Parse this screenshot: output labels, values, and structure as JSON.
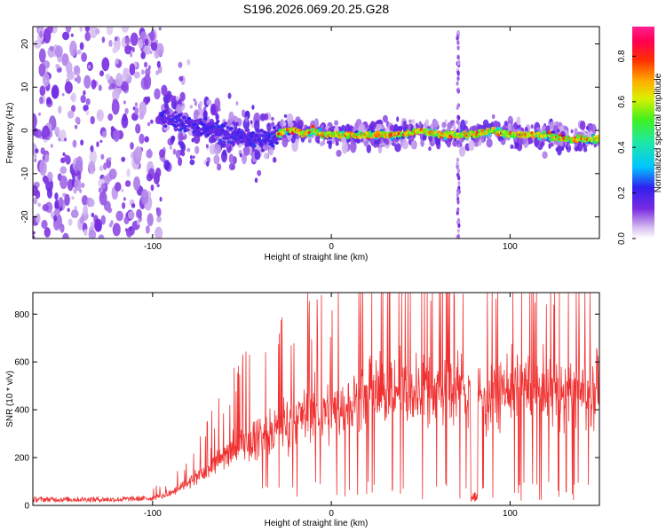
{
  "title": "S196.2026.069.20.25.G28",
  "chart_data": [
    {
      "type": "heatmap",
      "name": "spectrogram",
      "xlabel": "Height of straight line (km)",
      "ylabel": "Frequency (Hz)",
      "xlim": [
        -167,
        150
      ],
      "ylim": [
        -25,
        24
      ],
      "xticks": [
        -100,
        0,
        100
      ],
      "yticks": [
        -20,
        -10,
        0,
        10,
        20
      ],
      "ridge_freq": [
        [
          -95,
          3
        ],
        [
          -85,
          2
        ],
        [
          -75,
          1
        ],
        [
          -65,
          0
        ],
        [
          -55,
          -1
        ],
        [
          -45,
          -2
        ],
        [
          -35,
          -2
        ],
        [
          -30,
          -1
        ],
        [
          -25,
          0
        ],
        [
          -20,
          0
        ],
        [
          -15,
          -1
        ],
        [
          -10,
          0
        ],
        [
          -5,
          -1
        ],
        [
          0,
          -1
        ],
        [
          5,
          -1
        ],
        [
          10,
          -1
        ],
        [
          20,
          -1
        ],
        [
          30,
          -1
        ],
        [
          40,
          -1
        ],
        [
          50,
          0
        ],
        [
          60,
          -1
        ],
        [
          70,
          -1
        ],
        [
          80,
          -1
        ],
        [
          90,
          0
        ],
        [
          100,
          -1
        ],
        [
          110,
          -1
        ],
        [
          120,
          -1
        ],
        [
          130,
          -2
        ],
        [
          140,
          -2
        ],
        [
          150,
          -2
        ]
      ],
      "vertical_stripe_x": 71,
      "colorbar": {
        "label": "Normalized spectral amplitude",
        "ticks": [
          0.0,
          0.2,
          0.4,
          0.6,
          0.8
        ],
        "range": [
          0,
          0.93
        ]
      }
    },
    {
      "type": "line",
      "name": "snr",
      "xlabel": "Height of straight line (km)",
      "ylabel": "SNR (10 * v/v)",
      "xlim": [
        -167,
        150
      ],
      "ylim": [
        0,
        890
      ],
      "xticks": [
        -100,
        0,
        100
      ],
      "yticks": [
        0,
        200,
        400,
        600,
        800
      ],
      "series": [
        {
          "name": "SNR",
          "color": "#f03030",
          "envelope": [
            [
              -167,
              25
            ],
            [
              -120,
              25
            ],
            [
              -100,
              30
            ],
            [
              -90,
              50
            ],
            [
              -80,
              90
            ],
            [
              -70,
              150
            ],
            [
              -60,
              210
            ],
            [
              -50,
              260
            ],
            [
              -40,
              290
            ],
            [
              -30,
              320
            ],
            [
              -20,
              370
            ],
            [
              -10,
              390
            ],
            [
              0,
              390
            ],
            [
              10,
              420
            ],
            [
              20,
              450
            ],
            [
              30,
              470
            ],
            [
              40,
              490
            ],
            [
              50,
              480
            ],
            [
              60,
              480
            ],
            [
              70,
              490
            ],
            [
              80,
              460
            ],
            [
              90,
              470
            ],
            [
              100,
              500
            ],
            [
              110,
              480
            ],
            [
              120,
              470
            ],
            [
              130,
              470
            ],
            [
              140,
              480
            ],
            [
              150,
              510
            ]
          ],
          "dropout_x": [
            78,
            82
          ],
          "dropout_value": 15
        }
      ]
    }
  ],
  "colors": {
    "line": "#f03030",
    "frame": "#000000",
    "background": "#ffffff"
  }
}
